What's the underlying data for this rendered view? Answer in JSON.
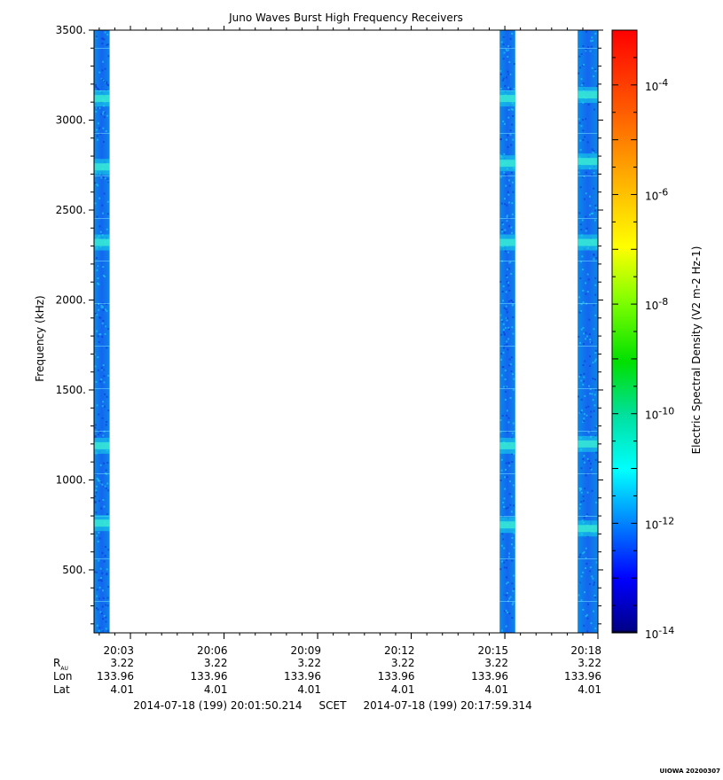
{
  "chart_data": {
    "type": "heatmap",
    "title": "Juno Waves Burst High Frequency Receivers",
    "ylabel": "Frequency (kHz)",
    "ylim": [
      150,
      3500
    ],
    "y_ticks": [
      {
        "value": 3500,
        "label": "3500."
      },
      {
        "value": 3000,
        "label": "3000."
      },
      {
        "value": 2500,
        "label": "2500."
      },
      {
        "value": 2000,
        "label": "2000."
      },
      {
        "value": 1500,
        "label": "1500."
      },
      {
        "value": 1000,
        "label": "1000."
      },
      {
        "value": 500,
        "label": "500."
      }
    ],
    "x_ticks": [
      "20:03",
      "20:06",
      "20:09",
      "20:12",
      "20:15",
      "20:18"
    ],
    "ephemeris": {
      "rows": [
        {
          "label": "R",
          "sub": "AU",
          "values": [
            "3.22",
            "3.22",
            "3.22",
            "3.22",
            "3.22",
            "3.22"
          ]
        },
        {
          "label": "Lon",
          "sub": "",
          "values": [
            "133.96",
            "133.96",
            "133.96",
            "133.96",
            "133.96",
            "133.96"
          ]
        },
        {
          "label": "Lat",
          "sub": "",
          "values": [
            "4.01",
            "4.01",
            "4.01",
            "4.01",
            "4.01",
            "4.01"
          ]
        }
      ]
    },
    "time_range": "2014-07-18 (199) 20:01:50.214     SCET     2014-07-18 (199) 20:17:59.314",
    "colorbar": {
      "label": "Electric Spectral Density (V2 m-2 Hz-1)",
      "scale": "log",
      "range": [
        1e-14,
        0.001
      ],
      "ticks": [
        {
          "exp": -4,
          "base": "10",
          "power": "-4"
        },
        {
          "exp": -6,
          "base": "10",
          "power": "-6"
        },
        {
          "exp": -8,
          "base": "10",
          "power": "-8"
        },
        {
          "exp": -10,
          "base": "10",
          "power": "-10"
        },
        {
          "exp": -12,
          "base": "10",
          "power": "-12"
        },
        {
          "exp": -14,
          "base": "10",
          "power": "-14"
        }
      ]
    },
    "bursts": [
      {
        "start": "20:01:50",
        "end": "20:02:20",
        "bands_khz": [
          3120,
          2740,
          2320,
          1190,
          760
        ]
      },
      {
        "start": "20:14:50",
        "end": "20:15:20",
        "bands_khz": [
          3120,
          2760,
          2320,
          1190,
          750
        ]
      },
      {
        "start": "20:17:20",
        "end": "20:17:59",
        "bands_khz": [
          3140,
          2770,
          2320,
          1200,
          730
        ]
      }
    ],
    "background_level": "1e-12",
    "band_level": "1e-11",
    "grid": false
  },
  "footer_tag": "UIOWA 20200307"
}
